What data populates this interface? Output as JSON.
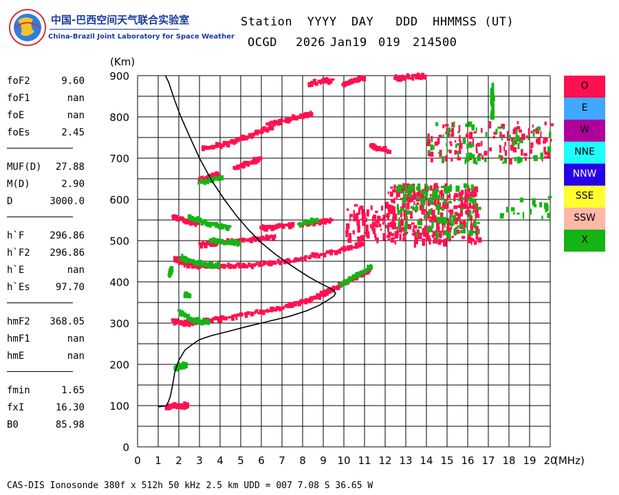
{
  "logo": {
    "cn": "中国-巴西空间天气联合实验室",
    "en": "China-Brazil Joint Laboratory for Space Weather"
  },
  "header": {
    "line1": "Station  YYYY  DAY   DDD  HHMMSS (UT)",
    "station": "OCGD",
    "year": "2026",
    "date": "Jan19",
    "doy": "019",
    "time": "214500"
  },
  "params": [
    {
      "name": "foF2",
      "value": "9.60"
    },
    {
      "name": "foF1",
      "value": "nan"
    },
    {
      "name": "foE",
      "value": "nan"
    },
    {
      "name": "foEs",
      "value": "2.45"
    },
    {
      "name": "MUF(D)",
      "value": "27.88"
    },
    {
      "name": "M(D)",
      "value": "2.90"
    },
    {
      "name": "D",
      "value": "3000.0"
    },
    {
      "name": "h`F",
      "value": "296.86"
    },
    {
      "name": "h`F2",
      "value": "296.86"
    },
    {
      "name": "h`E",
      "value": "nan"
    },
    {
      "name": "h`Es",
      "value": "97.70"
    },
    {
      "name": "hmF2",
      "value": "368.05"
    },
    {
      "name": "hmF1",
      "value": "nan"
    },
    {
      "name": "hmE",
      "value": "nan"
    },
    {
      "name": "fmin",
      "value": "1.65"
    },
    {
      "name": "fxI",
      "value": "16.30"
    },
    {
      "name": "B0",
      "value": "85.98"
    }
  ],
  "legend": [
    {
      "label": "O",
      "color": "#ff1050",
      "text_color": "#000000"
    },
    {
      "label": "E",
      "color": "#40a8ff",
      "text_color": "#000000"
    },
    {
      "label": "W",
      "color": "#b0009c",
      "text_color": "#000000"
    },
    {
      "label": "NNE",
      "color": "#1effff",
      "text_color": "#000000"
    },
    {
      "label": "NNW",
      "color": "#2800e8",
      "text_color": "#ffffff"
    },
    {
      "label": "SSE",
      "color": "#ffff30",
      "text_color": "#000000"
    },
    {
      "label": "SSW",
      "color": "#ffb8a8",
      "text_color": "#000000"
    },
    {
      "label": "X",
      "color": "#14b414",
      "text_color": "#000000"
    }
  ],
  "footer": "CAS-DIS Ionosonde 380f x 512h 50 kHz 2.5 km UDD = 007 7.08 S 36.65 W",
  "chart_data": {
    "type": "scatter",
    "xlabel": "(MHz)",
    "ylabel": "(Km)",
    "xlim": [
      0,
      20
    ],
    "ylim": [
      0,
      900
    ],
    "x_ticks": [
      0,
      1,
      2,
      3,
      4,
      5,
      6,
      7,
      8,
      9,
      10,
      11,
      12,
      13,
      14,
      15,
      16,
      17,
      18,
      19,
      20
    ],
    "y_ticks": [
      0,
      100,
      200,
      300,
      400,
      500,
      600,
      700,
      800,
      900
    ],
    "grid": true,
    "series": [
      {
        "mode": "O",
        "color": "#ff1050",
        "trace_type": "O-mode echoes",
        "traces": [
          {
            "x": [
              1.4,
              1.7,
              2.0,
              2.3,
              2.45
            ],
            "y": [
              97,
              98,
              99,
              100,
              100
            ]
          },
          {
            "x": [
              1.7,
              2.0,
              2.5,
              3.0,
              4.0,
              5.0,
              6.0,
              7.0,
              7.5,
              8.0,
              8.5,
              9.0,
              9.3,
              9.6
            ],
            "y": [
              305,
              302,
              300,
              303,
              310,
              318,
              328,
              338,
              345,
              352,
              360,
              370,
              378,
              386
            ]
          },
          {
            "x": [
              9.6,
              10.0,
              10.5,
              11.0,
              11.3
            ],
            "y": [
              386,
              395,
              408,
              420,
              430
            ]
          },
          {
            "x": [
              1.8,
              2.2,
              2.7,
              3.5,
              4.5,
              5.5,
              6.5,
              7.5,
              8.5,
              9.5,
              10.5,
              11.0
            ],
            "y": [
              455,
              445,
              440,
              438,
              438,
              440,
              445,
              452,
              462,
              472,
              485,
              492
            ]
          },
          {
            "x": [
              3.0,
              4.0,
              5.0,
              6.0,
              6.7
            ],
            "y": [
              490,
              494,
              500,
              505,
              510
            ]
          },
          {
            "x": [
              1.7,
              2.0,
              2.5,
              3.0
            ],
            "y": [
              560,
              553,
              545,
              540
            ]
          },
          {
            "x": [
              3.0,
              3.3,
              3.6,
              4.0
            ],
            "y": [
              645,
              650,
              655,
              660
            ]
          },
          {
            "x": [
              3.2,
              4.0,
              4.7,
              5.3,
              6.0,
              6.7
            ],
            "y": [
              725,
              730,
              740,
              752,
              765,
              780
            ]
          },
          {
            "x": [
              4.7,
              5.2,
              5.7,
              6.0
            ],
            "y": [
              675,
              685,
              693,
              700
            ]
          },
          {
            "x": [
              6.3,
              7.0,
              7.8,
              8.5
            ],
            "y": [
              780,
              790,
              800,
              810
            ]
          },
          {
            "x": [
              8.3,
              9.0,
              9.5
            ],
            "y": [
              880,
              885,
              890
            ]
          },
          {
            "x": [
              10.0,
              10.6,
              11.0
            ],
            "y": [
              880,
              888,
              895
            ]
          },
          {
            "x": [
              12.5,
              13.0,
              13.6,
              14.0
            ],
            "y": [
              893,
              896,
              898,
              899
            ]
          },
          {
            "x": [
              6.0,
              6.5,
              7.0,
              7.6
            ],
            "y": [
              530,
              532,
              535,
              538
            ]
          },
          {
            "x": [
              8.0,
              8.8,
              9.5
            ],
            "y": [
              540,
              545,
              552
            ]
          },
          {
            "x": [
              11.3,
              11.8,
              12.3
            ],
            "y": [
              730,
              722,
              715
            ]
          }
        ],
        "clouds": [
          {
            "x": [
              12.0,
              16.5
            ],
            "y": [
              500,
              640
            ],
            "n": 320
          },
          {
            "x": [
              14.0,
              20.0
            ],
            "y": [
              700,
              790
            ],
            "n": 110
          },
          {
            "x": [
              10.0,
              12.0
            ],
            "y": [
              500,
              590
            ],
            "n": 60
          }
        ]
      },
      {
        "mode": "X",
        "color": "#14b414",
        "trace_type": "X-mode echoes",
        "traces": [
          {
            "x": [
              1.8,
              2.0,
              2.2,
              2.4
            ],
            "y": [
              190,
              193,
              197,
              200
            ]
          },
          {
            "x": [
              2.0,
              2.3,
              2.6,
              3.0,
              3.5
            ],
            "y": [
              328,
              318,
              310,
              305,
              303
            ]
          },
          {
            "x": [
              9.8,
              10.3,
              10.8,
              11.4
            ],
            "y": [
              392,
              405,
              420,
              440
            ]
          },
          {
            "x": [
              2.1,
              2.5,
              3.0,
              3.5,
              4.0
            ],
            "y": [
              460,
              450,
              445,
              442,
              440
            ]
          },
          {
            "x": [
              2.5,
              3.0,
              3.5,
              4.0,
              4.5
            ],
            "y": [
              555,
              548,
              540,
              535,
              532
            ]
          },
          {
            "x": [
              3.5,
              4.0,
              4.5,
              5.0
            ],
            "y": [
              500,
              497,
              494,
              495
            ]
          },
          {
            "x": [
              7.8,
              8.3,
              8.8
            ],
            "y": [
              540,
              545,
              550
            ]
          },
          {
            "x": [
              3.0,
              3.6,
              4.2
            ],
            "y": [
              640,
              648,
              655
            ]
          },
          {
            "x": [
              2.3,
              2.6
            ],
            "y": [
              370,
              362
            ]
          },
          {
            "x": [
              1.55,
              1.6,
              1.65
            ],
            "y": [
              415,
              425,
              430
            ]
          },
          {
            "x": [
              17.2,
              17.2,
              17.2,
              17.2
            ],
            "y": [
              800,
              820,
              850,
              878
            ]
          }
        ],
        "clouds": [
          {
            "x": [
              12.5,
              16.5
            ],
            "y": [
              520,
              640
            ],
            "n": 130
          },
          {
            "x": [
              14.0,
              20.0
            ],
            "y": [
              690,
              790
            ],
            "n": 60
          },
          {
            "x": [
              17.5,
              20.0
            ],
            "y": [
              560,
              610
            ],
            "n": 18
          }
        ]
      },
      {
        "mode": "profile",
        "color": "#000000",
        "trace_type": "electron density profile",
        "x": [
          1.0,
          1.15,
          1.3,
          1.4,
          1.5,
          1.6,
          1.7,
          1.8,
          2.0,
          2.3,
          2.7,
          3.0,
          3.6,
          4.4,
          5.4,
          6.4,
          7.4,
          8.2,
          8.8,
          9.2,
          9.5,
          9.6,
          9.5,
          9.2,
          8.8,
          8.3,
          7.8,
          7.2,
          6.6,
          6.0,
          5.4,
          4.8,
          4.2,
          3.6,
          3.0,
          2.5,
          2.1,
          1.8,
          1.6,
          1.5,
          1.35
        ],
        "y": [
          97,
          98,
          99,
          100,
          110,
          125,
          150,
          180,
          210,
          235,
          250,
          260,
          270,
          280,
          293,
          305,
          317,
          330,
          343,
          355,
          365,
          372,
          380,
          388,
          398,
          412,
          428,
          448,
          470,
          495,
          525,
          560,
          600,
          645,
          700,
          755,
          800,
          840,
          870,
          885,
          900
        ]
      }
    ]
  }
}
